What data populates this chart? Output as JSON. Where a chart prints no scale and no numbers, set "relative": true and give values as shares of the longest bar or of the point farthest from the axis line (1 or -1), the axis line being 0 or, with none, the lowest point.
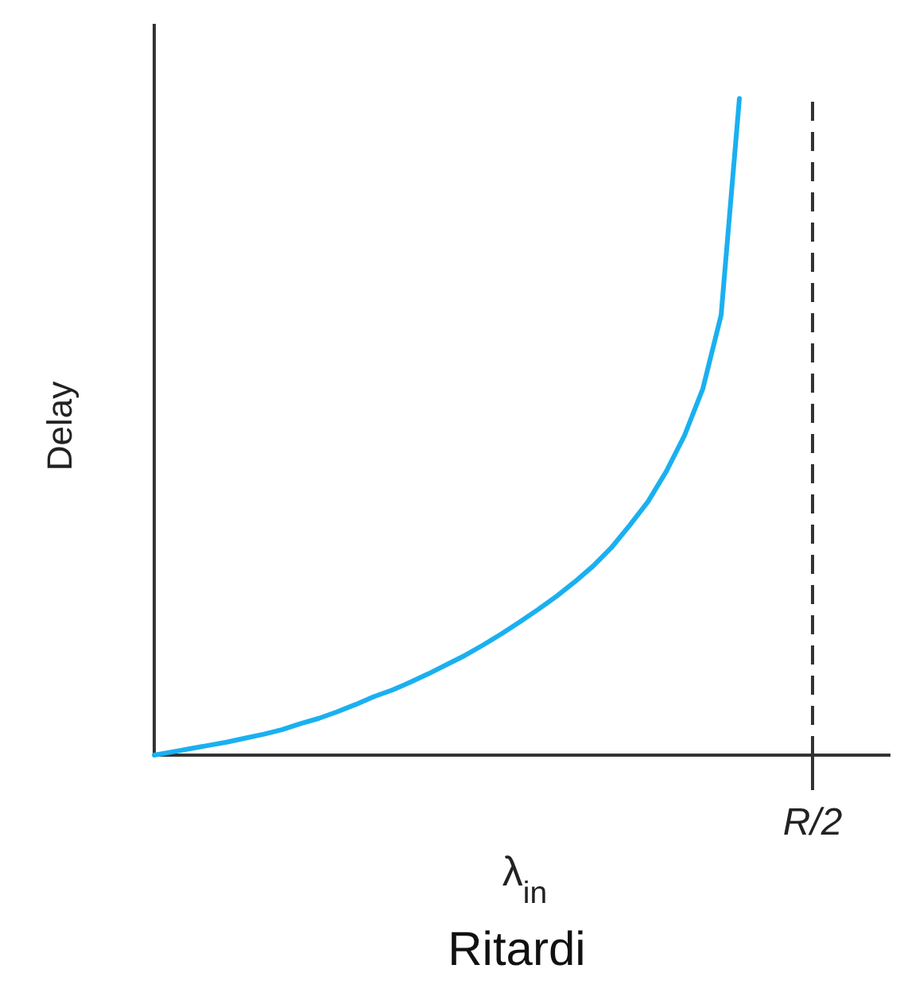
{
  "chart_data": {
    "type": "line",
    "relative": true,
    "xlabel": "λ$_{in}$",
    "ylabel": "Delay",
    "annotations": [
      "Ritardi"
    ],
    "categories": [
      null,
      null,
      null,
      null,
      null,
      null,
      null,
      null,
      null,
      null,
      null,
      null,
      null,
      null,
      null,
      null,
      null,
      null,
      null,
      null,
      null,
      null,
      null,
      null,
      null,
      null,
      null,
      null,
      null,
      null,
      null,
      null,
      null,
      null,
      null,
      null,
      null
    ],
    "ref_lines": [
      {
        "axis": "x",
        "label": "R/2",
        "color": "#333333",
        "line_style": "dashed"
      }
    ],
    "series": [
      {
        "color": "#1ab0f0",
        "values": [
          0,
          0.005,
          0.01,
          0.015,
          0.02,
          0.026,
          0.032,
          0.039,
          0.048,
          0.056,
          0.066,
          0.077,
          0.089,
          0.099,
          0.111,
          0.124,
          0.138,
          0.152,
          0.168,
          0.185,
          0.203,
          0.222,
          0.242,
          0.264,
          0.288,
          0.316,
          0.35,
          0.386,
          0.432,
          0.487,
          0.558,
          0.67,
          1,
          null,
          null,
          null,
          null
        ]
      }
    ]
  }
}
